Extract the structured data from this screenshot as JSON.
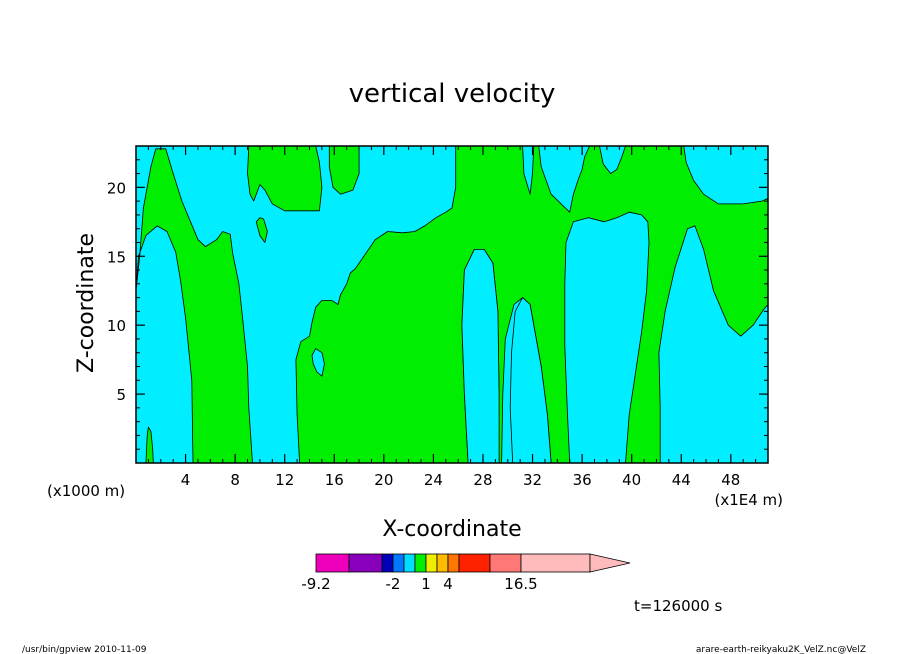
{
  "chart_data": {
    "type": "heatmap",
    "title": "vertical velocity",
    "xlabel": "X-coordinate",
    "ylabel": "Z-coordinate",
    "x_unit_left": "(x1000 m)",
    "x_unit_right": "(x1E4 m)",
    "xlim": [
      0,
      51
    ],
    "ylim": [
      0,
      23
    ],
    "x_ticks": [
      "4",
      "8",
      "12",
      "16",
      "20",
      "24",
      "28",
      "32",
      "36",
      "40",
      "44",
      "48"
    ],
    "y_ticks": [
      "5",
      "10",
      "15",
      "20"
    ],
    "background_color": "#00eeff",
    "regions_color": "#00ee00",
    "regions": [
      {
        "name": "left-column",
        "poly": [
          [
            0,
            12.5
          ],
          [
            0.3,
            15
          ],
          [
            0.6,
            18.5
          ],
          [
            1.2,
            21.5
          ],
          [
            1.6,
            22.8
          ],
          [
            2.4,
            22.8
          ],
          [
            3,
            21
          ],
          [
            3.7,
            19
          ],
          [
            4.4,
            17.5
          ],
          [
            5,
            16.2
          ],
          [
            5.6,
            15.7
          ],
          [
            6.5,
            16.2
          ],
          [
            7,
            16.8
          ],
          [
            7.6,
            16.6
          ],
          [
            7.8,
            15.2
          ],
          [
            8.3,
            13
          ],
          [
            8.6,
            10.5
          ],
          [
            9,
            7
          ],
          [
            9.1,
            4
          ],
          [
            9.4,
            0
          ],
          [
            4.6,
            0
          ],
          [
            4.5,
            6
          ],
          [
            4,
            10.5
          ],
          [
            3.6,
            13.2
          ],
          [
            3.2,
            15.3
          ],
          [
            2.5,
            16.8
          ],
          [
            1.7,
            17.2
          ],
          [
            0.8,
            16.5
          ],
          [
            0.2,
            15
          ]
        ]
      },
      {
        "name": "tiny-spot",
        "poly": [
          [
            0.8,
            0
          ],
          [
            0.9,
            2
          ],
          [
            1,
            2.6
          ],
          [
            1.2,
            2.3
          ],
          [
            1.35,
            1
          ],
          [
            1.4,
            0
          ]
        ]
      },
      {
        "name": "central-mass",
        "poly": [
          [
            13.2,
            0
          ],
          [
            13,
            3.5
          ],
          [
            12.9,
            7.5
          ],
          [
            13.3,
            8.8
          ],
          [
            14,
            9.2
          ],
          [
            14.2,
            10.2
          ],
          [
            14.5,
            11.3
          ],
          [
            15,
            11.8
          ],
          [
            15.8,
            11.8
          ],
          [
            16.3,
            11.5
          ],
          [
            16.5,
            12.2
          ],
          [
            17,
            13
          ],
          [
            17.3,
            13.8
          ],
          [
            17.7,
            14.1
          ],
          [
            19.3,
            16.2
          ],
          [
            20.3,
            16.8
          ],
          [
            21.5,
            16.7
          ],
          [
            22.5,
            16.8
          ],
          [
            23.3,
            17.2
          ],
          [
            24.2,
            17.8
          ],
          [
            25,
            18.2
          ],
          [
            25.5,
            18.5
          ],
          [
            25.8,
            20
          ],
          [
            25.8,
            23
          ],
          [
            32.5,
            23
          ],
          [
            32.7,
            21.5
          ],
          [
            33.5,
            19.5
          ],
          [
            35,
            18.2
          ],
          [
            35.3,
            19.5
          ],
          [
            35.7,
            20.6
          ],
          [
            36,
            21.3
          ],
          [
            36.2,
            22.2
          ],
          [
            36.6,
            23
          ],
          [
            37.4,
            23
          ],
          [
            37.7,
            21.7
          ],
          [
            38.3,
            21
          ],
          [
            38.8,
            21.3
          ],
          [
            39.2,
            22.2
          ],
          [
            39.5,
            23
          ],
          [
            44.2,
            23
          ],
          [
            44.4,
            21.8
          ],
          [
            45,
            20.5
          ],
          [
            45.8,
            19.5
          ],
          [
            47,
            18.8
          ],
          [
            49,
            18.8
          ],
          [
            50.5,
            19
          ],
          [
            51,
            19.2
          ],
          [
            51,
            11.5
          ],
          [
            50.7,
            11.2
          ],
          [
            49.8,
            10
          ],
          [
            48.8,
            9.2
          ],
          [
            47.8,
            10
          ],
          [
            46.6,
            12.5
          ],
          [
            45.8,
            15.5
          ],
          [
            45.1,
            17.2
          ],
          [
            44.5,
            17
          ],
          [
            43.5,
            14.2
          ],
          [
            42.7,
            11
          ],
          [
            42.2,
            8
          ],
          [
            42.3,
            4
          ],
          [
            42.3,
            0
          ],
          [
            39.5,
            0
          ],
          [
            39.8,
            3.5
          ],
          [
            40.3,
            6.5
          ],
          [
            40.8,
            9.5
          ],
          [
            41.2,
            12.5
          ],
          [
            41.4,
            16
          ],
          [
            41.3,
            17.5
          ],
          [
            40.8,
            18
          ],
          [
            39.8,
            18.2
          ],
          [
            38.8,
            17.8
          ],
          [
            37.8,
            17.5
          ],
          [
            36.5,
            17.8
          ],
          [
            35.3,
            17.5
          ],
          [
            34.7,
            16
          ],
          [
            34.6,
            13
          ],
          [
            34.6,
            8.5
          ],
          [
            34.8,
            4
          ],
          [
            35,
            0
          ],
          [
            33.5,
            0
          ],
          [
            33.2,
            3.5
          ],
          [
            32.7,
            7
          ],
          [
            32.2,
            9.5
          ],
          [
            31.8,
            11.5
          ],
          [
            31.2,
            12
          ],
          [
            30.5,
            11.5
          ],
          [
            29.8,
            9
          ],
          [
            29.6,
            5
          ],
          [
            29.5,
            0
          ],
          [
            26.8,
            0
          ],
          [
            26.5,
            5
          ],
          [
            26.3,
            10
          ],
          [
            26.5,
            14
          ],
          [
            27.3,
            15.5
          ],
          [
            28.1,
            15.5
          ],
          [
            28.8,
            14.5
          ],
          [
            29.2,
            11
          ],
          [
            29.3,
            5
          ],
          [
            29.3,
            0
          ]
        ]
      },
      {
        "name": "top-blob-a",
        "poly": [
          [
            9.1,
            23
          ],
          [
            9,
            21
          ],
          [
            9.2,
            19.5
          ],
          [
            9.5,
            19
          ],
          [
            10,
            20.2
          ],
          [
            10.4,
            19.8
          ],
          [
            11,
            18.8
          ],
          [
            12,
            18.3
          ],
          [
            13,
            18.3
          ],
          [
            14.8,
            18.3
          ],
          [
            15,
            20
          ],
          [
            14.8,
            21.8
          ],
          [
            14.5,
            23
          ]
        ]
      },
      {
        "name": "top-blob-b",
        "poly": [
          [
            15.6,
            23
          ],
          [
            15.6,
            21.5
          ],
          [
            15.9,
            20
          ],
          [
            16.5,
            19.5
          ],
          [
            17.5,
            19.8
          ],
          [
            18,
            21
          ],
          [
            18,
            23
          ]
        ]
      },
      {
        "name": "small-island",
        "poly": [
          [
            9.7,
            17.5
          ],
          [
            10,
            16.5
          ],
          [
            10.4,
            16
          ],
          [
            10.6,
            16.8
          ],
          [
            10.3,
            17.7
          ],
          [
            10,
            17.8
          ]
        ]
      }
    ],
    "holes_color": "#00eeff",
    "holes": [
      {
        "name": "mid-cyan-column",
        "poly": [
          [
            26.8,
            0
          ],
          [
            26.5,
            5
          ],
          [
            26.3,
            10
          ],
          [
            26.5,
            14
          ],
          [
            27.3,
            15.5
          ],
          [
            28.1,
            15.5
          ],
          [
            28.8,
            14.5
          ],
          [
            29.2,
            11
          ],
          [
            29.3,
            5
          ],
          [
            29.3,
            0
          ]
        ]
      },
      {
        "name": "mid-cyan-column-2",
        "poly": [
          [
            33.5,
            0
          ],
          [
            33.2,
            3.5
          ],
          [
            32.7,
            7
          ],
          [
            32.2,
            9.5
          ],
          [
            31.8,
            11.5
          ],
          [
            31.2,
            12
          ],
          [
            30.6,
            11
          ],
          [
            30.3,
            8
          ],
          [
            30.2,
            4
          ],
          [
            30.4,
            0
          ]
        ]
      },
      {
        "name": "upper-cyan-notch",
        "poly": [
          [
            31.2,
            23
          ],
          [
            31.3,
            21
          ],
          [
            31.8,
            19.5
          ],
          [
            32,
            21
          ],
          [
            32.1,
            23
          ]
        ]
      },
      {
        "name": "small-hole",
        "poly": [
          [
            14.2,
            7.8
          ],
          [
            14.5,
            8.3
          ],
          [
            15,
            8.0
          ],
          [
            15.2,
            7.2
          ],
          [
            15,
            6.3
          ],
          [
            14.6,
            6.6
          ],
          [
            14.3,
            7.2
          ]
        ]
      }
    ],
    "colorbar": {
      "colors": [
        "#ee00bb",
        "#8800bb",
        "#0000bb",
        "#0077ff",
        "#00ddff",
        "#00ee00",
        "#eeee00",
        "#ffbb00",
        "#ff7700",
        "#ff2200",
        "#ff7777",
        "#ffbbbb"
      ],
      "boundaries": [
        -9.2,
        -6.0,
        -3.8,
        -2,
        -1.2,
        -0.4,
        0.6,
        1.5,
        2.5,
        4,
        8,
        16.5
      ],
      "tick_labels": [
        "-9.2",
        "-2",
        "1",
        "4",
        "16.5"
      ]
    }
  },
  "annotations": {
    "time": "t=126000 s",
    "footer_left": "/usr/bin/gpview  2010-11-09",
    "footer_right": "arare-earth-reikyaku2K_VelZ.nc@VelZ"
  }
}
